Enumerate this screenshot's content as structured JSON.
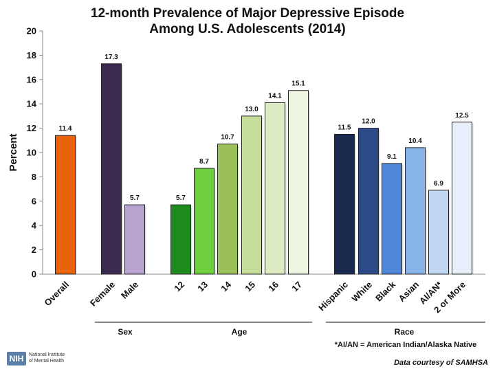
{
  "chart_data": {
    "type": "bar",
    "title": "12-month Prevalence of Major Depressive Episode",
    "subtitle": "Among U.S. Adolescents (2014)",
    "ylabel": "Percent",
    "ylim": [
      0,
      20
    ],
    "yticks": [
      0,
      2,
      4,
      6,
      8,
      10,
      12,
      14,
      16,
      18,
      20
    ],
    "grid": false,
    "bars": [
      {
        "label": "Overall",
        "value": 11.4,
        "value_label": "11.4",
        "color": "#e8630a"
      },
      {
        "label": "Female",
        "value": 17.3,
        "value_label": "17.3",
        "color": "#3b2a4f"
      },
      {
        "label": "Male",
        "value": 5.7,
        "value_label": "5.7",
        "color": "#b8a3d1"
      },
      {
        "label": "12",
        "value": 5.7,
        "value_label": "5.7",
        "color": "#1f8a1f"
      },
      {
        "label": "13",
        "value": 8.7,
        "value_label": "8.7",
        "color": "#6fcf3f"
      },
      {
        "label": "14",
        "value": 10.7,
        "value_label": "10.7",
        "color": "#9bc05a"
      },
      {
        "label": "15",
        "value": 13.0,
        "value_label": "13.0",
        "color": "#c5dc9a"
      },
      {
        "label": "16",
        "value": 14.1,
        "value_label": "14.1",
        "color": "#dcebc2"
      },
      {
        "label": "17",
        "value": 15.1,
        "value_label": "15.1",
        "color": "#eef6e2"
      },
      {
        "label": "Hispanic",
        "value": 11.5,
        "value_label": "11.5",
        "color": "#1a2a4e"
      },
      {
        "label": "White",
        "value": 12.0,
        "value_label": "12.0",
        "color": "#2b4a86"
      },
      {
        "label": "Black",
        "value": 9.1,
        "value_label": "9.1",
        "color": "#4f86d8"
      },
      {
        "label": "Asian",
        "value": 10.4,
        "value_label": "10.4",
        "color": "#88b4ea"
      },
      {
        "label": "AI/AN*",
        "value": 6.9,
        "value_label": "6.9",
        "color": "#c1d6f1"
      },
      {
        "label": "2 or More",
        "value": 12.5,
        "value_label": "12.5",
        "color": "#e6effa"
      }
    ],
    "groups": [
      {
        "label": "Sex",
        "members": [
          "Female",
          "Male"
        ]
      },
      {
        "label": "Age",
        "members": [
          "12",
          "13",
          "14",
          "15",
          "16",
          "17"
        ]
      },
      {
        "label": "Race",
        "members": [
          "Hispanic",
          "White",
          "Black",
          "Asian",
          "AI/AN*",
          "2 or More"
        ]
      }
    ]
  },
  "footnote": "*AI/AN = American Indian/Alaska Native",
  "credit": "Data courtesy of SAMHSA",
  "logo": {
    "mark": "NIH",
    "name_line1": "National Institute",
    "name_line2": "of Mental Health"
  }
}
